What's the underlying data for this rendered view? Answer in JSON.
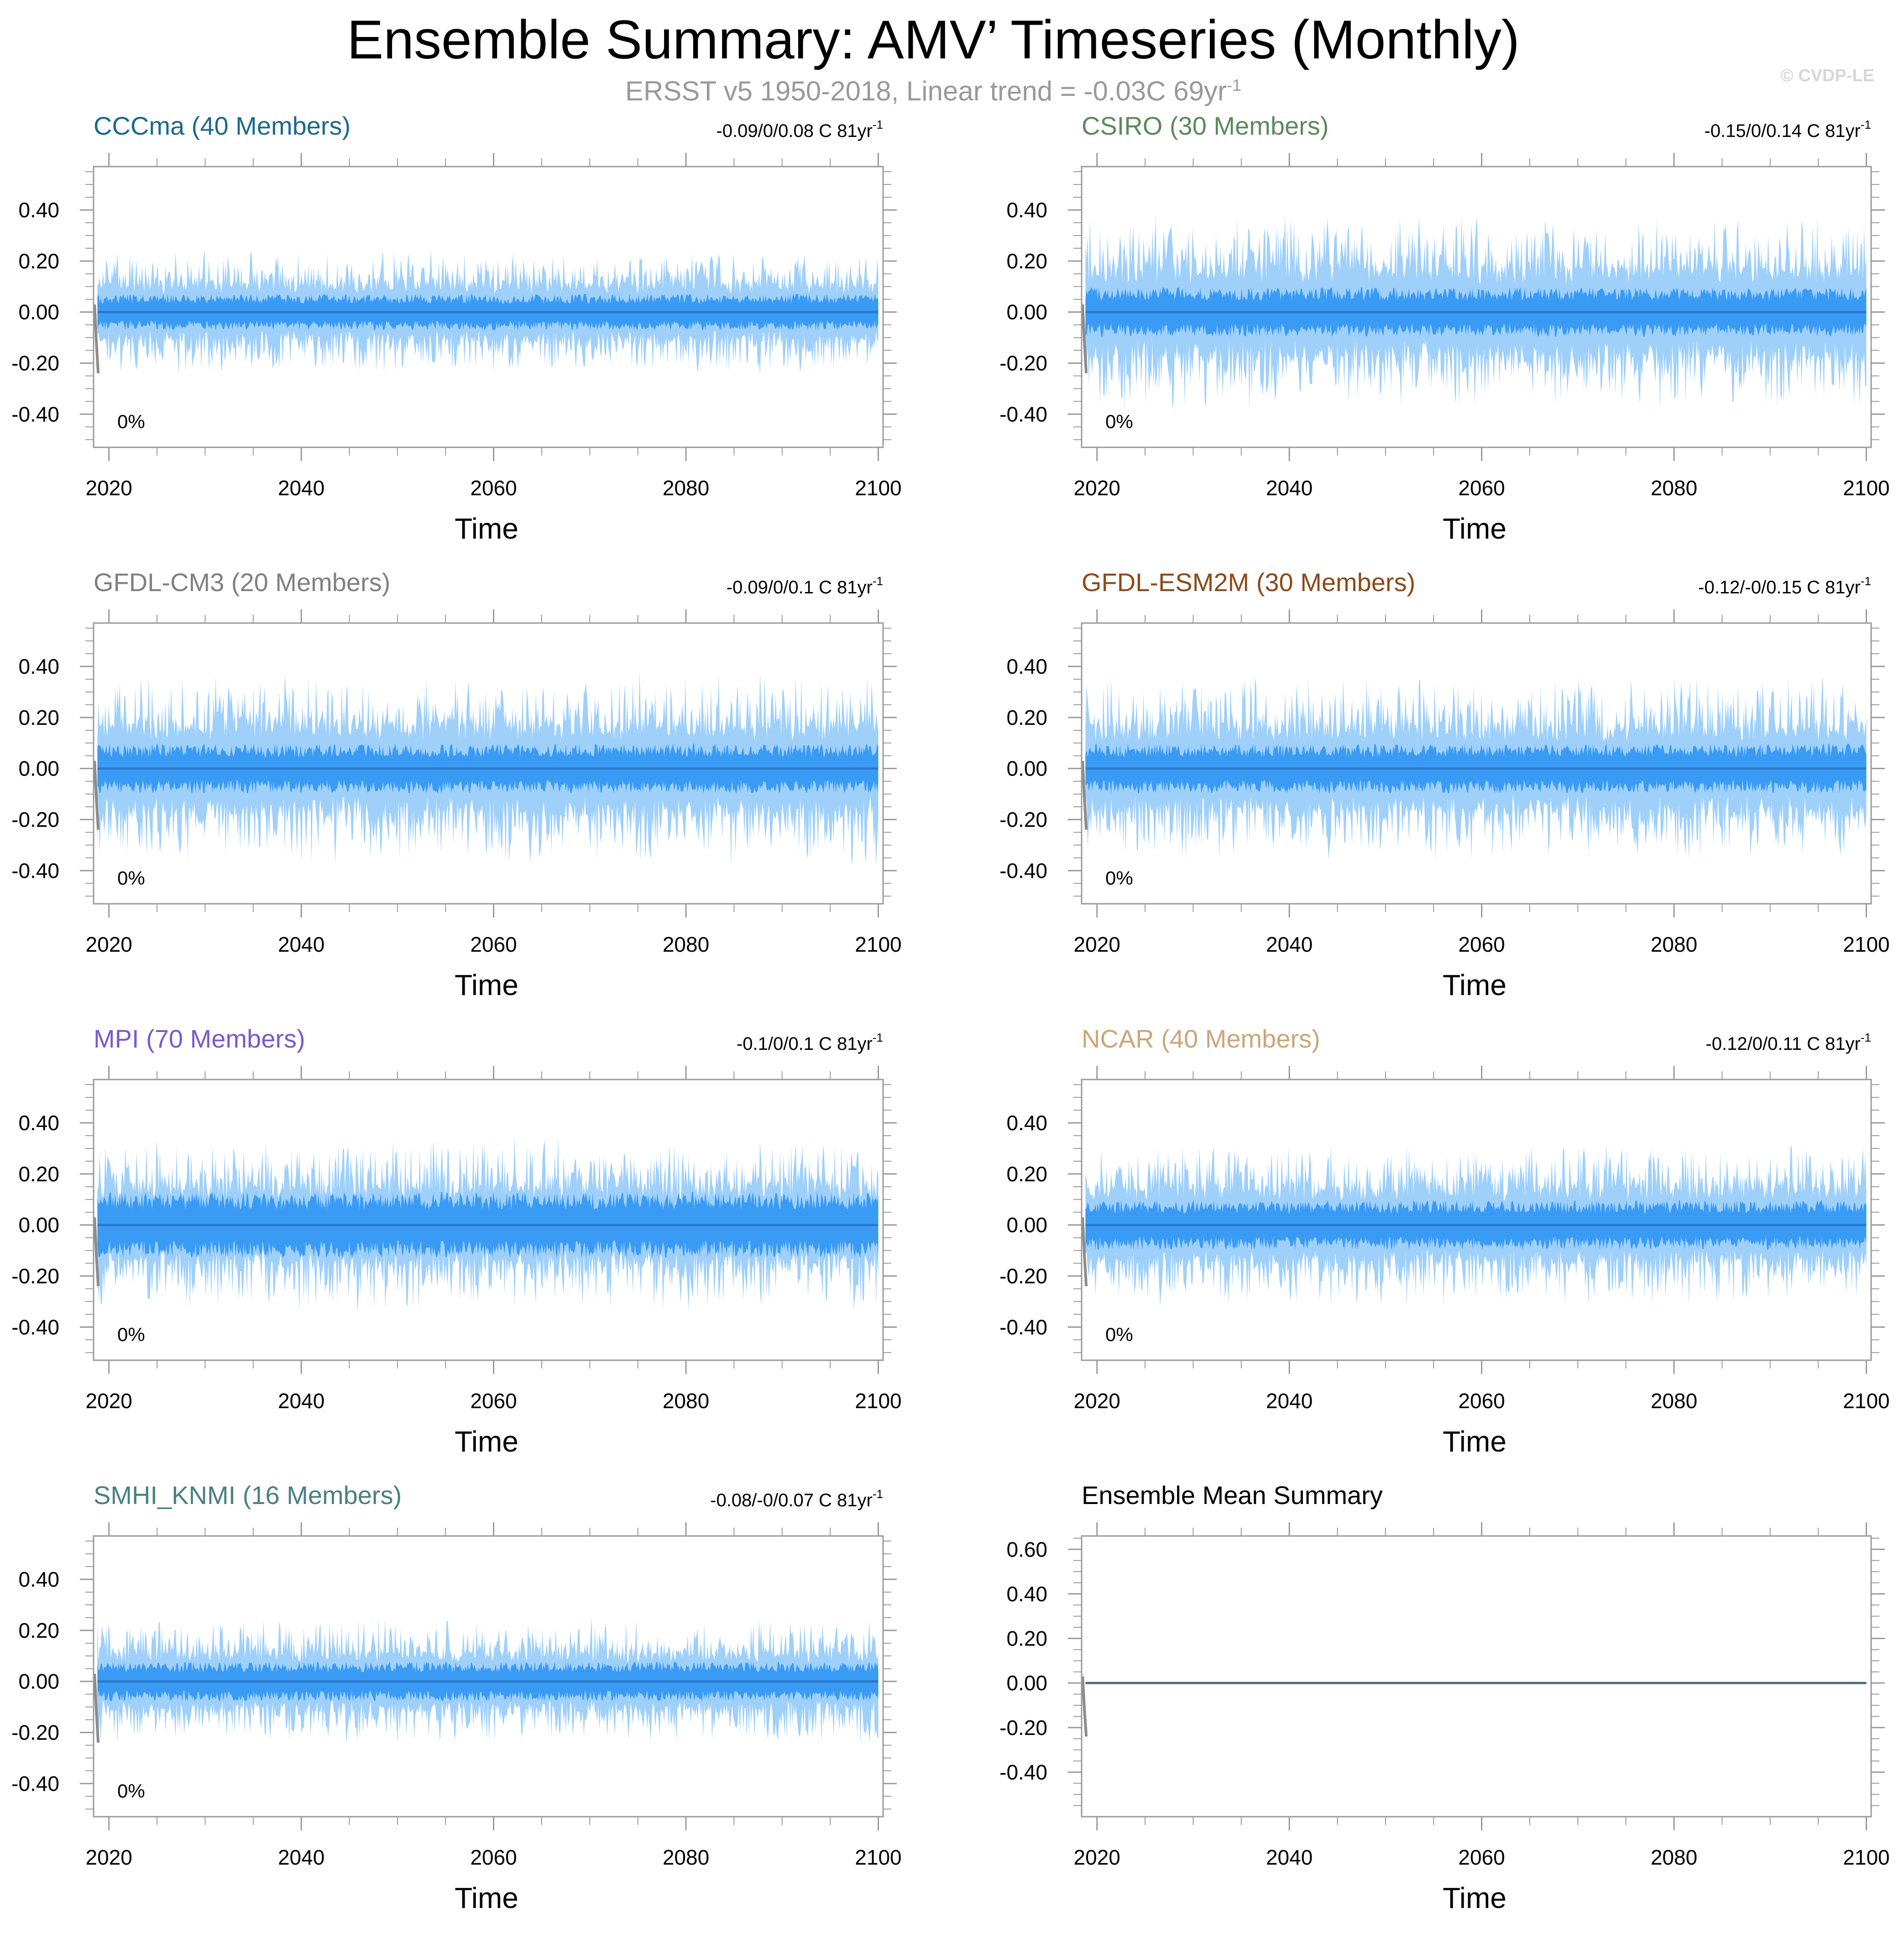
{
  "title": "Ensemble Summary: AMV’ Timeseries (Monthly)",
  "subtitle": "ERSST v5 1950-2018, Linear trend = -0.03C 69yr",
  "subtitle_exp": "-1",
  "watermark": "© CVDP-LE",
  "colors": {
    "outer_band": "#9fd0fa",
    "inner_band": "#3a9bf5",
    "mean_line": "#2a79c9",
    "obs": "#8c8c8c",
    "summary_line": "#4a6b7c",
    "axis": "#9a9a9a",
    "text": "#000000"
  },
  "chart_data": [
    {
      "type": "area",
      "name": "cccma",
      "title": "CCCma (40 Members)",
      "title_color": "#1a6a8c",
      "trend": "-0.09/0/0.08 C 81yr",
      "trend_exp": "-1",
      "pct": "0%",
      "xlabel": "Time",
      "xlim": [
        2018.4,
        2100.5
      ],
      "ylim": [
        -0.53,
        0.57
      ],
      "yticks": [
        "0.40",
        "0.20",
        "0.00",
        "-0.20",
        "-0.40"
      ],
      "ytick_values": [
        0.4,
        0.2,
        0.0,
        -0.2,
        -0.4
      ],
      "xticks": [
        2020,
        2040,
        2060,
        2080,
        2100
      ],
      "band_outer": 0.13,
      "band_inner": 0.055,
      "seed": 11,
      "mean": 0.0
    },
    {
      "type": "area",
      "name": "csiro",
      "title": "CSIRO (30 Members)",
      "title_color": "#5a8a5a",
      "trend": "-0.15/0/0.14 C 81yr",
      "trend_exp": "-1",
      "pct": "0%",
      "xlabel": "Time",
      "xlim": [
        2018.4,
        2100.5
      ],
      "ylim": [
        -0.53,
        0.57
      ],
      "yticks": [
        "0.40",
        "0.20",
        "0.00",
        "-0.20",
        "-0.40"
      ],
      "ytick_values": [
        0.4,
        0.2,
        0.0,
        -0.2,
        -0.4
      ],
      "xticks": [
        2020,
        2040,
        2060,
        2080,
        2100
      ],
      "band_outer": 0.2,
      "band_inner": 0.075,
      "seed": 23,
      "mean": 0.0
    },
    {
      "type": "area",
      "name": "gfdl-cm3",
      "title": "GFDL-CM3 (20 Members)",
      "title_color": "#808080",
      "trend": "-0.09/0/0.1 C 81yr",
      "trend_exp": "-1",
      "pct": "0%",
      "xlabel": "Time",
      "xlim": [
        2018.4,
        2100.5
      ],
      "ylim": [
        -0.53,
        0.57
      ],
      "yticks": [
        "0.40",
        "0.20",
        "0.00",
        "-0.20",
        "-0.40"
      ],
      "ytick_values": [
        0.4,
        0.2,
        0.0,
        -0.2,
        -0.4
      ],
      "xticks": [
        2020,
        2040,
        2060,
        2080,
        2100
      ],
      "band_outer": 0.2,
      "band_inner": 0.075,
      "seed": 37,
      "mean": 0.0
    },
    {
      "type": "area",
      "name": "gfdl-esm2m",
      "title": "GFDL-ESM2M (30 Members)",
      "title_color": "#8b4a1a",
      "trend": "-0.12/-0/0.15 C 81yr",
      "trend_exp": "-1",
      "pct": "0%",
      "xlabel": "Time",
      "xlim": [
        2018.4,
        2100.5
      ],
      "ylim": [
        -0.53,
        0.57
      ],
      "yticks": [
        "0.40",
        "0.20",
        "0.00",
        "-0.20",
        "-0.40"
      ],
      "ytick_values": [
        0.4,
        0.2,
        0.0,
        -0.2,
        -0.4
      ],
      "xticks": [
        2020,
        2040,
        2060,
        2080,
        2100
      ],
      "band_outer": 0.19,
      "band_inner": 0.075,
      "seed": 41,
      "mean": 0.0
    },
    {
      "type": "area",
      "name": "mpi",
      "title": "MPI (70 Members)",
      "title_color": "#7a5acb",
      "trend": "-0.1/0/0.1 C 81yr",
      "trend_exp": "-1",
      "pct": "0%",
      "xlabel": "Time",
      "xlim": [
        2018.4,
        2100.5
      ],
      "ylim": [
        -0.53,
        0.57
      ],
      "yticks": [
        "0.40",
        "0.20",
        "0.00",
        "-0.20",
        "-0.40"
      ],
      "ytick_values": [
        0.4,
        0.2,
        0.0,
        -0.2,
        -0.4
      ],
      "xticks": [
        2020,
        2040,
        2060,
        2080,
        2100
      ],
      "band_outer": 0.18,
      "band_inner": 0.1,
      "seed": 53,
      "mean": 0.0
    },
    {
      "type": "area",
      "name": "ncar",
      "title": "NCAR (40 Members)",
      "title_color": "#c9a77a",
      "trend": "-0.12/0/0.11 C 81yr",
      "trend_exp": "-1",
      "pct": "0%",
      "xlabel": "Time",
      "xlim": [
        2018.4,
        2100.5
      ],
      "ylim": [
        -0.53,
        0.57
      ],
      "yticks": [
        "0.40",
        "0.20",
        "0.00",
        "-0.20",
        "-0.40"
      ],
      "ytick_values": [
        0.4,
        0.2,
        0.0,
        -0.2,
        -0.4
      ],
      "xticks": [
        2020,
        2040,
        2060,
        2080,
        2100
      ],
      "band_outer": 0.17,
      "band_inner": 0.075,
      "seed": 67,
      "mean": 0.0
    },
    {
      "type": "area",
      "name": "smhi-knmi",
      "title": "SMHI_KNMI (16 Members)",
      "title_color": "#4a8080",
      "trend": "-0.08/-0/0.07 C 81yr",
      "trend_exp": "-1",
      "pct": "0%",
      "xlabel": "Time",
      "xlim": [
        2018.4,
        2100.5
      ],
      "ylim": [
        -0.53,
        0.57
      ],
      "yticks": [
        "0.40",
        "0.20",
        "0.00",
        "-0.20",
        "-0.40"
      ],
      "ytick_values": [
        0.4,
        0.2,
        0.0,
        -0.2,
        -0.4
      ],
      "xticks": [
        2020,
        2040,
        2060,
        2080,
        2100
      ],
      "band_outer": 0.13,
      "band_inner": 0.06,
      "seed": 79,
      "mean": 0.0
    },
    {
      "type": "line",
      "name": "ensemble-mean-summary",
      "title": "Ensemble Mean Summary",
      "title_color": "#000000",
      "trend": "",
      "trend_exp": "",
      "pct": "",
      "xlabel": "Time",
      "xlim": [
        2018.4,
        2100.5
      ],
      "ylim": [
        -0.6,
        0.66
      ],
      "yticks": [
        "0.60",
        "0.40",
        "0.20",
        "0.00",
        "-0.20",
        "-0.40"
      ],
      "ytick_values": [
        0.6,
        0.4,
        0.2,
        0.0,
        -0.2,
        -0.4
      ],
      "xticks": [
        2020,
        2040,
        2060,
        2080,
        2100
      ],
      "series": [
        {
          "name": "ensemble mean",
          "x": [
            2018.8,
            2100
          ],
          "y": [
            0.0,
            0.0
          ]
        }
      ]
    }
  ]
}
